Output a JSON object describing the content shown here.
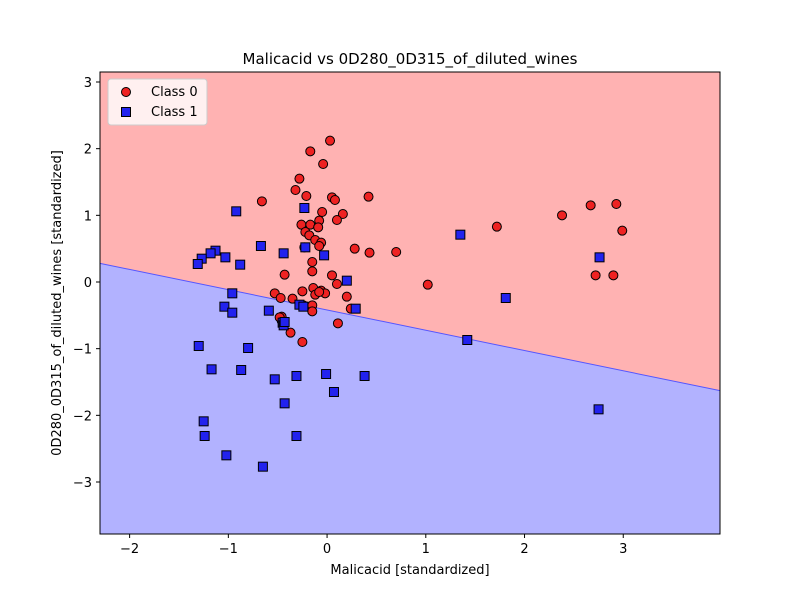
{
  "chart_data": {
    "type": "scatter",
    "title": "Malicacid vs 0D280_0D315_of_diluted_wines",
    "xlabel": "Malicacid [standardized]",
    "ylabel": "0D280_0D315_of_diluted_wines [standardized]",
    "xlim": [
      -2.3,
      3.98
    ],
    "ylim": [
      -3.78,
      3.15
    ],
    "xticks": [
      -2,
      -1,
      0,
      1,
      2,
      3
    ],
    "yticks": [
      -3,
      -2,
      -1,
      0,
      1,
      2,
      3
    ],
    "xtick_labels": [
      "−2",
      "−1",
      "0",
      "1",
      "2",
      "3"
    ],
    "ytick_labels": [
      "−3",
      "−2",
      "−1",
      "0",
      "1",
      "2",
      "3"
    ],
    "grid": false,
    "legend_position": "top-left",
    "decision_boundary": {
      "description": "linear boundary separating regions",
      "points": [
        [
          -2.3,
          0.28
        ],
        [
          3.98,
          -1.63
        ]
      ],
      "upper_region_class": "Class 0",
      "lower_region_class": "Class 1",
      "upper_color": "#ffb2b2",
      "lower_color": "#b2b2ff",
      "line_color": "#5555ff"
    },
    "series": [
      {
        "name": "Class 0",
        "marker": "circle",
        "color": "#ee2222",
        "points": [
          [
            0.03,
            2.12
          ],
          [
            -0.17,
            1.96
          ],
          [
            -0.04,
            1.77
          ],
          [
            -0.28,
            1.55
          ],
          [
            -0.32,
            1.38
          ],
          [
            -0.21,
            1.29
          ],
          [
            0.05,
            1.27
          ],
          [
            0.08,
            1.23
          ],
          [
            0.42,
            1.28
          ],
          [
            -0.66,
            1.21
          ],
          [
            0.16,
            1.02
          ],
          [
            0.1,
            0.93
          ],
          [
            -0.05,
            1.05
          ],
          [
            -0.08,
            0.92
          ],
          [
            -0.26,
            0.86
          ],
          [
            -0.17,
            0.86
          ],
          [
            -0.22,
            0.75
          ],
          [
            -0.18,
            0.7
          ],
          [
            -0.09,
            0.82
          ],
          [
            -0.12,
            0.63
          ],
          [
            -0.06,
            0.59
          ],
          [
            -0.08,
            0.54
          ],
          [
            -0.23,
            0.52
          ],
          [
            0.28,
            0.5
          ],
          [
            0.43,
            0.44
          ],
          [
            0.7,
            0.45
          ],
          [
            -0.15,
            0.3
          ],
          [
            -0.15,
            0.16
          ],
          [
            0.05,
            0.1
          ],
          [
            -0.43,
            0.11
          ],
          [
            0.1,
            -0.03
          ],
          [
            -0.14,
            -0.09
          ],
          [
            -0.53,
            -0.17
          ],
          [
            -0.12,
            -0.19
          ],
          [
            -0.06,
            -0.13
          ],
          [
            -0.02,
            -0.17
          ],
          [
            -0.25,
            -0.14
          ],
          [
            -0.47,
            -0.24
          ],
          [
            -0.35,
            -0.25
          ],
          [
            0.2,
            -0.22
          ],
          [
            -0.24,
            -0.35
          ],
          [
            -0.15,
            -0.35
          ],
          [
            -0.15,
            -0.44
          ],
          [
            0.24,
            -0.4
          ],
          [
            -0.46,
            -0.52
          ],
          [
            -0.46,
            -0.58
          ],
          [
            -0.48,
            -0.53
          ],
          [
            0.11,
            -0.62
          ],
          [
            -0.37,
            -0.76
          ],
          [
            -0.25,
            -0.9
          ],
          [
            1.02,
            -0.04
          ],
          [
            1.72,
            0.83
          ],
          [
            2.38,
            1.0
          ],
          [
            2.67,
            1.15
          ],
          [
            2.93,
            1.17
          ],
          [
            2.99,
            0.77
          ],
          [
            2.72,
            0.1
          ],
          [
            2.9,
            0.1
          ],
          [
            -0.08,
            -0.15
          ]
        ]
      },
      {
        "name": "Class 1",
        "marker": "square",
        "color": "#2222ee",
        "points": [
          [
            -0.92,
            1.06
          ],
          [
            -0.23,
            1.11
          ],
          [
            -0.67,
            0.54
          ],
          [
            -0.22,
            0.52
          ],
          [
            -0.44,
            0.43
          ],
          [
            -0.03,
            0.4
          ],
          [
            -1.13,
            0.47
          ],
          [
            -1.18,
            0.43
          ],
          [
            -1.03,
            0.37
          ],
          [
            -1.27,
            0.35
          ],
          [
            -1.31,
            0.27
          ],
          [
            -0.88,
            0.26
          ],
          [
            0.2,
            0.02
          ],
          [
            -0.96,
            -0.17
          ],
          [
            -1.04,
            -0.37
          ],
          [
            -0.96,
            -0.46
          ],
          [
            -0.59,
            -0.43
          ],
          [
            -0.28,
            -0.34
          ],
          [
            -0.24,
            -0.37
          ],
          [
            -0.45,
            -0.61
          ],
          [
            -0.44,
            -0.65
          ],
          [
            -0.43,
            -0.6
          ],
          [
            0.29,
            -0.4
          ],
          [
            1.35,
            0.71
          ],
          [
            2.76,
            0.37
          ],
          [
            1.81,
            -0.24
          ],
          [
            1.42,
            -0.87
          ],
          [
            -1.3,
            -0.96
          ],
          [
            -0.8,
            -0.99
          ],
          [
            -1.17,
            -1.31
          ],
          [
            -0.87,
            -1.32
          ],
          [
            -0.53,
            -1.46
          ],
          [
            -0.31,
            -1.41
          ],
          [
            -0.01,
            -1.38
          ],
          [
            0.38,
            -1.41
          ],
          [
            0.07,
            -1.65
          ],
          [
            -0.43,
            -1.82
          ],
          [
            -1.25,
            -2.09
          ],
          [
            -1.24,
            -2.31
          ],
          [
            -0.31,
            -2.31
          ],
          [
            -1.02,
            -2.6
          ],
          [
            -0.65,
            -2.77
          ],
          [
            2.75,
            -1.91
          ]
        ]
      }
    ]
  }
}
